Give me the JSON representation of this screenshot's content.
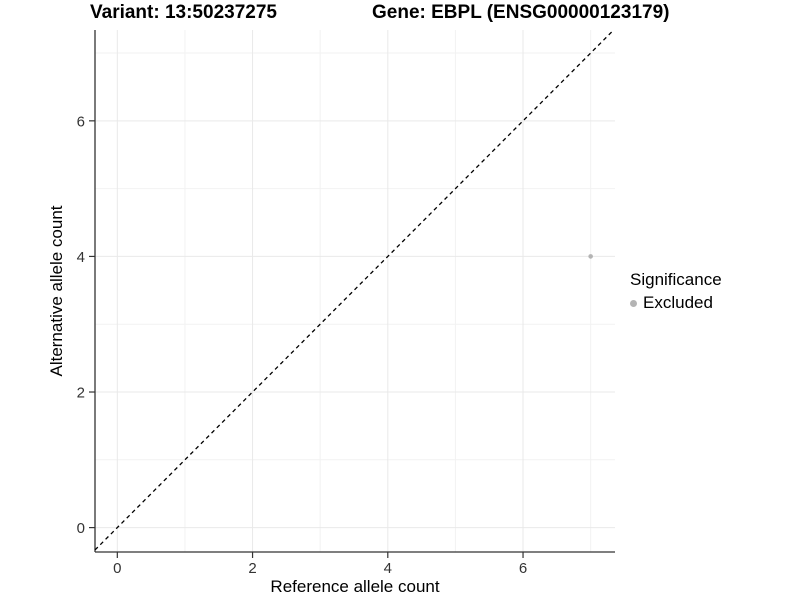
{
  "chart_data": {
    "type": "scatter",
    "title_left": "Variant: 13:50237275",
    "title_right": "Gene: EBPL (ENSG00000123179)",
    "xlabel": "Reference allele count",
    "ylabel": "Alternative allele count",
    "xlim": [
      -0.33,
      7.36
    ],
    "ylim": [
      -0.36,
      7.34
    ],
    "x_ticks": [
      0,
      2,
      4,
      6
    ],
    "y_ticks": [
      0,
      2,
      4,
      6
    ],
    "minor_gridlines_x": [
      1,
      3,
      5,
      7
    ],
    "minor_gridlines_y": [
      1,
      3,
      5,
      7
    ],
    "grid": true,
    "points": [
      {
        "x": 7,
        "y": 4,
        "series": "Excluded"
      }
    ],
    "reference_line": {
      "type": "identity",
      "style": "dashed",
      "equation": "y = x"
    },
    "legend": {
      "title": "Significance",
      "position": "right",
      "items": [
        {
          "label": "Excluded",
          "color": "#b4b4b4",
          "marker": "circle"
        }
      ]
    },
    "colors": {
      "background": "#ffffff",
      "grid_major": "#e9e9e9",
      "grid_minor": "#f2f2f2",
      "axis": "#333333",
      "tick_label": "#333333",
      "reference_line": "#000000",
      "point": "#b4b4b4"
    }
  }
}
